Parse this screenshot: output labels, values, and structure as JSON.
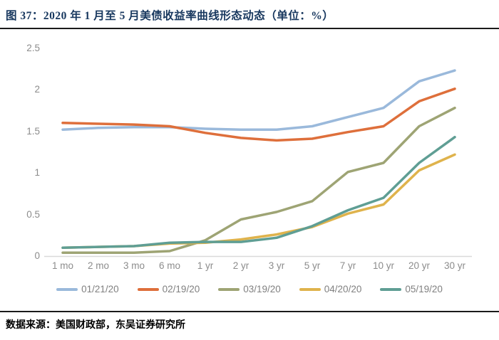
{
  "header": {
    "title": "图 37：2020 年 1 月至 5 月美债收益率曲线形态动态（单位：%）"
  },
  "footer": {
    "source": "数据来源：美国财政部，东吴证券研究所"
  },
  "colors": {
    "title_navy": "#17375E",
    "rule_dark": "#1a1a1a",
    "tick_gray": "#8c8c8c",
    "legend_gray": "#808080",
    "axis_line_gray": "#D9D9D9"
  },
  "chart_data": {
    "type": "line",
    "title": "2020 年 1 月至 5 月美债收益率曲线形态动态",
    "unit": "%",
    "grid": false,
    "legend_position": "bottom",
    "ylim": [
      0,
      2.5
    ],
    "ytick_labels": [
      "0",
      "0.5",
      "1",
      "1.5",
      "2",
      "2.5"
    ],
    "categories": [
      "1 mo",
      "2 mo",
      "3 mo",
      "6 mo",
      "1 yr",
      "2 yr",
      "3 yr",
      "5 yr",
      "7 yr",
      "10 yr",
      "20 yr",
      "30 yr"
    ],
    "series": [
      {
        "name": "01/21/20",
        "color": "#9AB9DB",
        "values": [
          1.52,
          1.54,
          1.55,
          1.55,
          1.53,
          1.52,
          1.52,
          1.56,
          1.67,
          1.78,
          2.1,
          2.23
        ]
      },
      {
        "name": "02/19/20",
        "color": "#DE6F3B",
        "values": [
          1.6,
          1.59,
          1.58,
          1.56,
          1.48,
          1.42,
          1.39,
          1.41,
          1.49,
          1.56,
          1.86,
          2.01
        ]
      },
      {
        "name": "03/19/20",
        "color": "#9EA474",
        "values": [
          0.04,
          0.04,
          0.04,
          0.06,
          0.19,
          0.44,
          0.53,
          0.66,
          1.01,
          1.12,
          1.56,
          1.78
        ]
      },
      {
        "name": "04/20/20",
        "color": "#DFB34C",
        "values": [
          0.1,
          0.11,
          0.12,
          0.15,
          0.16,
          0.2,
          0.26,
          0.35,
          0.51,
          0.62,
          1.03,
          1.22
        ]
      },
      {
        "name": "05/19/20",
        "color": "#5F9E94",
        "values": [
          0.1,
          0.11,
          0.12,
          0.16,
          0.17,
          0.17,
          0.22,
          0.36,
          0.55,
          0.7,
          1.12,
          1.43
        ]
      }
    ]
  }
}
